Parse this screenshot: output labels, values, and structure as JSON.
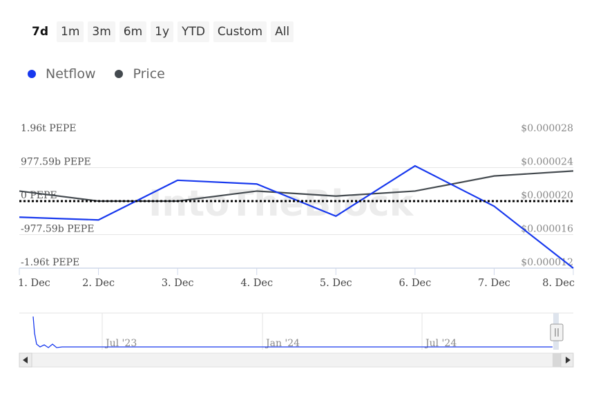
{
  "range_selector": {
    "buttons": [
      "7d",
      "1m",
      "3m",
      "6m",
      "1y",
      "YTD",
      "Custom",
      "All"
    ],
    "active": "7d"
  },
  "colors": {
    "netflow": "#1738ee",
    "price": "#444a4f",
    "grid": "#e6e6e6",
    "axis": "#cfd8ea"
  },
  "chart_data": {
    "type": "line",
    "x": [
      "1. Dec",
      "2. Dec",
      "3. Dec",
      "4. Dec",
      "5. Dec",
      "6. Dec",
      "7. Dec",
      "8. Dec"
    ],
    "series": [
      {
        "name": "Netflow",
        "axis": "left",
        "unit": "PEPE",
        "values": [
          -0.47,
          -0.55,
          0.61,
          0.5,
          -0.44,
          1.03,
          -0.15,
          -1.96
        ]
      },
      {
        "name": "Price",
        "axis": "right",
        "unit": "USD",
        "values": [
          2.12e-05,
          2e-05,
          2e-05,
          2.12e-05,
          2.06e-05,
          2.12e-05,
          2.3e-05,
          2.36e-05
        ]
      }
    ],
    "y_left": {
      "ticks": [
        "1.96t PEPE",
        "977.59b PEPE",
        "0 PEPE",
        "-977.59b PEPE",
        "-1.96t PEPE"
      ],
      "range_trillions": [
        -1.96,
        1.96
      ]
    },
    "y_right": {
      "ticks": [
        "$0.000028",
        "$0.000024",
        "$0.000020",
        "$0.000016",
        "$0.000012"
      ],
      "range": [
        1.2e-05,
        2.8e-05
      ]
    },
    "zero_line": "dotted",
    "grid": true,
    "watermark": "IntoTheBlock",
    "navigator": {
      "labels": [
        "Jul '23",
        "Jan '24",
        "Jul '24"
      ]
    }
  }
}
